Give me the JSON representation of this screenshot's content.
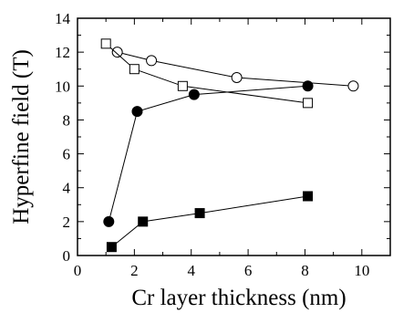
{
  "chart_data": {
    "type": "line",
    "title": "",
    "xlabel": "Cr layer thickness (nm)",
    "ylabel": "Hyperfine field (T)",
    "xlim": [
      0,
      11
    ],
    "ylim": [
      0,
      14
    ],
    "xticks": [
      0,
      2,
      4,
      6,
      8,
      10
    ],
    "yticks": [
      0,
      2,
      4,
      6,
      8,
      10,
      12,
      14
    ],
    "grid": false,
    "legend": "none",
    "series": [
      {
        "marker": "open-circle",
        "color": "#000000",
        "points": [
          [
            1.4,
            12.0
          ],
          [
            2.6,
            11.5
          ],
          [
            5.6,
            10.5
          ],
          [
            9.7,
            10.0
          ]
        ]
      },
      {
        "marker": "open-square",
        "color": "#000000",
        "points": [
          [
            1.0,
            12.5
          ],
          [
            2.0,
            11.0
          ],
          [
            3.7,
            10.0
          ],
          [
            8.1,
            9.0
          ]
        ]
      },
      {
        "marker": "filled-circle",
        "color": "#000000",
        "points": [
          [
            1.1,
            2.0
          ],
          [
            2.1,
            8.5
          ],
          [
            4.1,
            9.5
          ],
          [
            8.1,
            10.0
          ]
        ]
      },
      {
        "marker": "filled-square",
        "color": "#000000",
        "points": [
          [
            1.2,
            0.5
          ],
          [
            2.3,
            2.0
          ],
          [
            4.3,
            2.5
          ],
          [
            8.1,
            3.5
          ]
        ]
      }
    ]
  }
}
